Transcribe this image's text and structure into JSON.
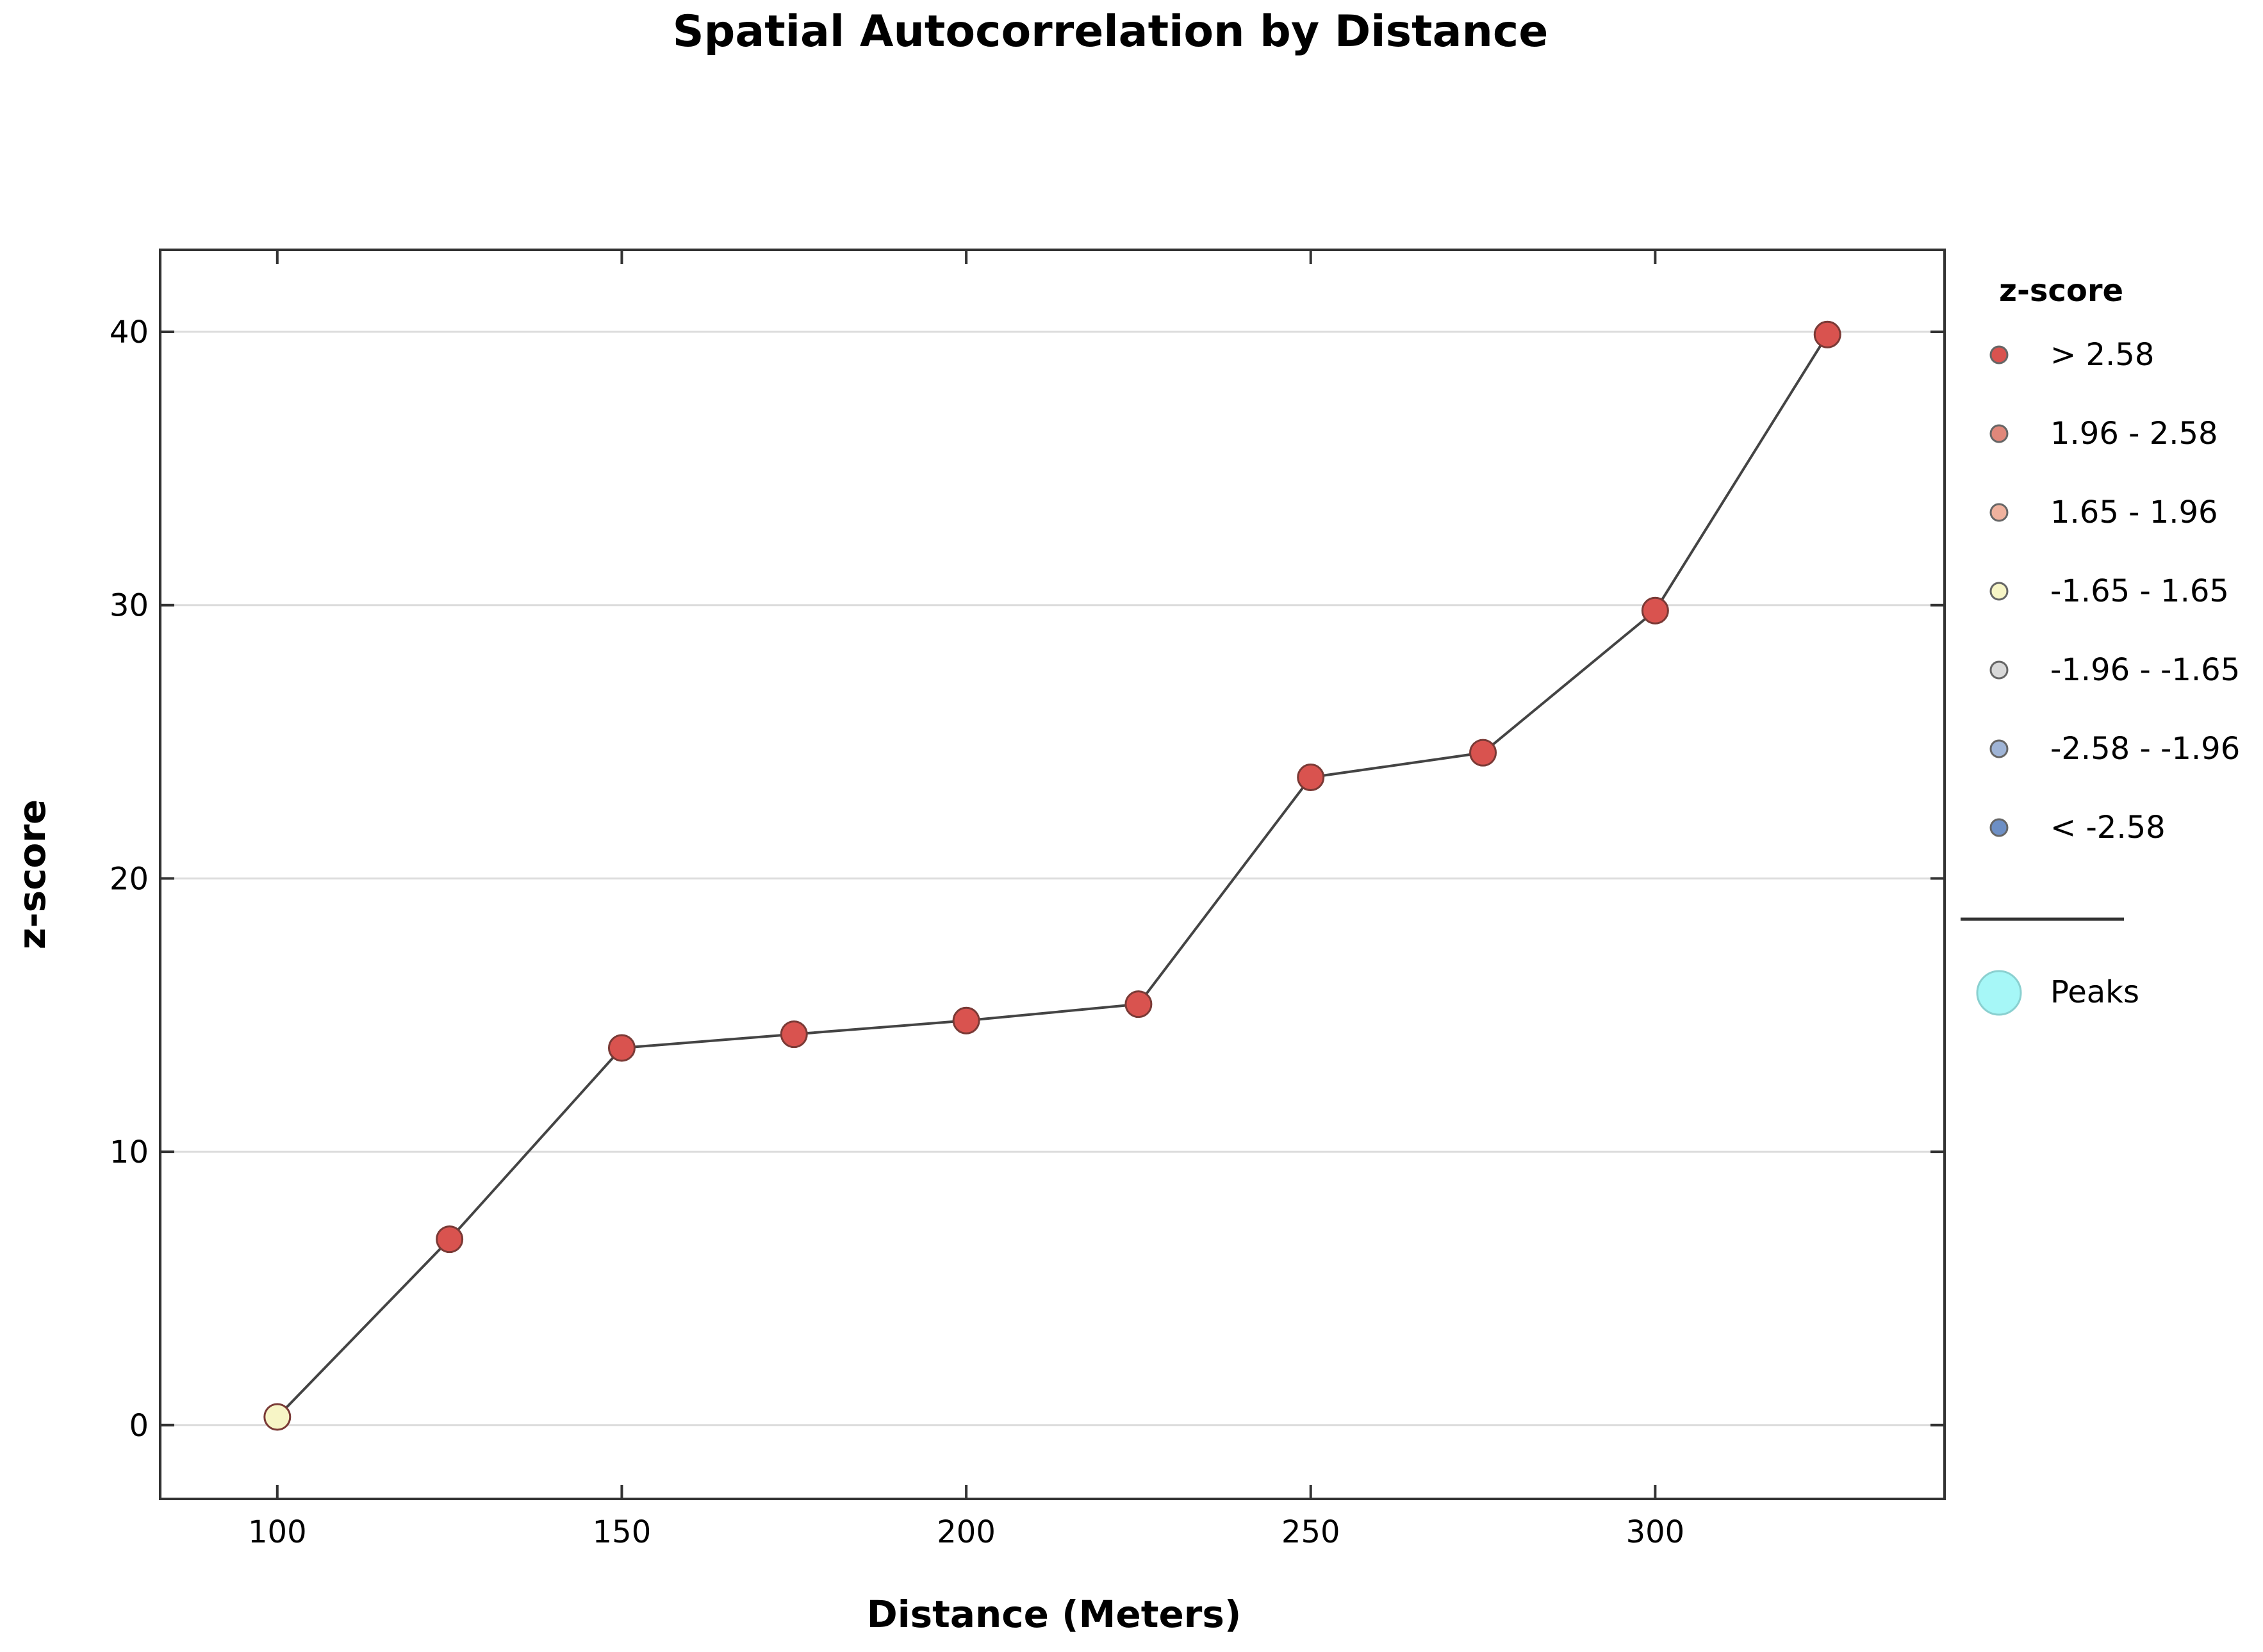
{
  "chart_data": {
    "type": "scatter",
    "title": "Spatial Autocorrelation by Distance",
    "xlabel": "Distance (Meters)",
    "ylabel": "z-score",
    "xlim": [
      83,
      342
    ],
    "ylim": [
      -2.7,
      43
    ],
    "x_ticks": [
      100,
      150,
      200,
      250,
      300
    ],
    "y_ticks": [
      0,
      10,
      20,
      30,
      40
    ],
    "grid": "horizontal",
    "connecting_line": true,
    "points": [
      {
        "x": 100,
        "y": 0.3,
        "category": "-1.65 - 1.65"
      },
      {
        "x": 125,
        "y": 6.8,
        "category": "> 2.58"
      },
      {
        "x": 150,
        "y": 13.8,
        "category": "> 2.58"
      },
      {
        "x": 175,
        "y": 14.3,
        "category": "> 2.58"
      },
      {
        "x": 200,
        "y": 14.8,
        "category": "> 2.58"
      },
      {
        "x": 225,
        "y": 15.4,
        "category": "> 2.58"
      },
      {
        "x": 250,
        "y": 23.7,
        "category": "> 2.58"
      },
      {
        "x": 275,
        "y": 24.6,
        "category": "> 2.58"
      },
      {
        "x": 300,
        "y": 29.8,
        "category": "> 2.58"
      },
      {
        "x": 325,
        "y": 39.9,
        "category": "> 2.58"
      }
    ],
    "legend": {
      "title": "z-score",
      "placement": "right",
      "entries": [
        {
          "label": "> 2.58",
          "color": "#d9534f"
        },
        {
          "label": "1.96 - 2.58",
          "color": "#e0877a"
        },
        {
          "label": "1.65 - 1.96",
          "color": "#f0b29e"
        },
        {
          "label": "-1.65 - 1.65",
          "color": "#f7f5c6"
        },
        {
          "label": "-1.96 - -1.65",
          "color": "#d9d9d9"
        },
        {
          "label": "-2.58 - -1.96",
          "color": "#9fb4d6"
        },
        {
          "label": "< -2.58",
          "color": "#6d8fc5"
        }
      ],
      "peaks": {
        "label": "Peaks",
        "color": "#a6f7f7"
      }
    }
  }
}
